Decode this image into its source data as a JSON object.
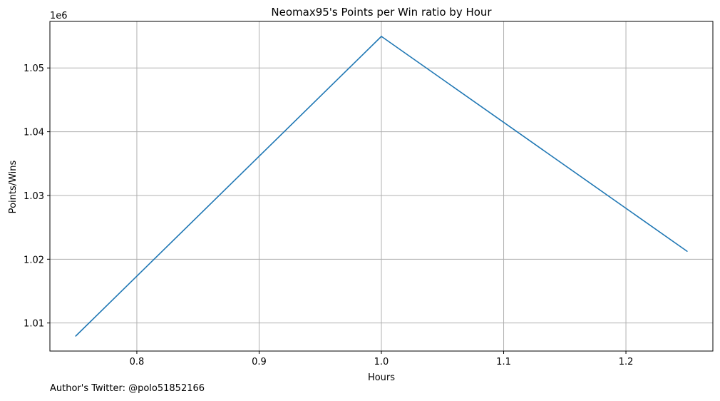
{
  "chart_data": {
    "type": "line",
    "title": "Neomax95's Points per Win ratio by Hour",
    "xlabel": "Hours",
    "ylabel": "Points/Wins",
    "y_offset_label": "1e6",
    "x": [
      0.75,
      1.0,
      1.25
    ],
    "series": [
      {
        "values": [
          1007950,
          1054950,
          1021250
        ],
        "color": "#1f77b4"
      }
    ],
    "xlim": [
      0.7289,
      1.2711
    ],
    "ylim": [
      1005600,
      1057300
    ],
    "x_ticks": [
      0.8,
      0.9,
      1.0,
      1.1,
      1.2
    ],
    "x_tick_labels": [
      "0.8",
      "0.9",
      "1.0",
      "1.1",
      "1.2"
    ],
    "y_ticks": [
      1010000,
      1020000,
      1030000,
      1040000,
      1050000
    ],
    "y_tick_labels": [
      "1.01",
      "1.02",
      "1.03",
      "1.04",
      "1.05"
    ],
    "grid": true,
    "grid_color": "#b0b0b0"
  },
  "footer": {
    "text": "Author's Twitter: @polo51852166"
  }
}
